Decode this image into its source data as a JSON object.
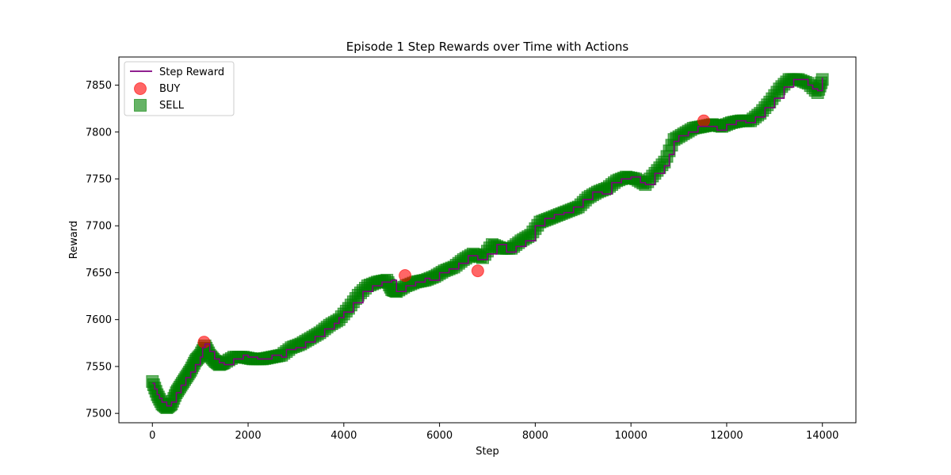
{
  "chart_data": {
    "type": "line",
    "title": "Episode 1 Step Rewards over Time with Actions",
    "xlabel": "Step",
    "ylabel": "Reward",
    "xlim": [
      -700,
      14700
    ],
    "ylim": [
      7490,
      7880
    ],
    "xticks": [
      0,
      2000,
      4000,
      6000,
      8000,
      10000,
      12000,
      14000
    ],
    "xtick_labels": [
      "0",
      "2000",
      "4000",
      "6000",
      "8000",
      "10000",
      "12000",
      "14000"
    ],
    "yticks": [
      7500,
      7550,
      7600,
      7650,
      7700,
      7750,
      7800,
      7850
    ],
    "ytick_labels": [
      "7500",
      "7550",
      "7600",
      "7650",
      "7700",
      "7750",
      "7800",
      "7850"
    ],
    "grid": false,
    "legend_position": "upper-left",
    "colors": {
      "line": "#800080",
      "buy": "#ff0000",
      "sell": "#008000"
    },
    "series": [
      {
        "name": "Step Reward",
        "kind": "line",
        "x": [
          0,
          50,
          100,
          150,
          200,
          300,
          400,
          500,
          600,
          700,
          800,
          900,
          1000,
          1050,
          1100,
          1200,
          1300,
          1400,
          1500,
          1700,
          1900,
          2000,
          2200,
          2500,
          2700,
          2800,
          3000,
          3200,
          3400,
          3600,
          3800,
          3900,
          4000,
          4200,
          4400,
          4600,
          4800,
          5000,
          5100,
          5300,
          5500,
          5700,
          5800,
          6000,
          6200,
          6400,
          6600,
          6800,
          7000,
          7200,
          7400,
          7600,
          7800,
          8000,
          8200,
          8400,
          8600,
          8800,
          9000,
          9200,
          9400,
          9600,
          9800,
          10000,
          10200,
          10300,
          10500,
          10700,
          10800,
          10900,
          11000,
          11200,
          11400,
          11600,
          11800,
          12000,
          12200,
          12400,
          12600,
          12800,
          13000,
          13200,
          13400,
          13600,
          13700,
          13800,
          13900,
          14000
        ],
        "values": [
          7532,
          7526,
          7520,
          7516,
          7512,
          7508,
          7512,
          7522,
          7530,
          7538,
          7544,
          7552,
          7560,
          7570,
          7574,
          7566,
          7558,
          7554,
          7552,
          7558,
          7562,
          7560,
          7558,
          7562,
          7560,
          7568,
          7570,
          7576,
          7582,
          7590,
          7596,
          7602,
          7608,
          7618,
          7630,
          7636,
          7640,
          7642,
          7630,
          7636,
          7640,
          7644,
          7642,
          7650,
          7654,
          7660,
          7668,
          7664,
          7670,
          7680,
          7672,
          7678,
          7684,
          7700,
          7708,
          7712,
          7714,
          7720,
          7728,
          7736,
          7734,
          7746,
          7750,
          7752,
          7746,
          7744,
          7756,
          7764,
          7776,
          7790,
          7796,
          7800,
          7806,
          7806,
          7802,
          7808,
          7812,
          7810,
          7816,
          7826,
          7836,
          7848,
          7856,
          7856,
          7850,
          7846,
          7844,
          7858
        ]
      },
      {
        "name": "BUY",
        "kind": "scatter",
        "marker": "circle",
        "x": [
          1080,
          5280,
          6800,
          11520
        ],
        "values": [
          7576,
          7647,
          7652,
          7812
        ]
      },
      {
        "name": "SELL",
        "kind": "scatter",
        "marker": "square",
        "x": [
          0,
          100,
          200,
          300,
          400,
          500,
          600,
          700,
          800,
          900,
          1000,
          1100,
          1200,
          1300,
          1400,
          1500,
          1700,
          1900,
          2100,
          2300,
          2500,
          2700,
          2900,
          3100,
          3300,
          3500,
          3700,
          3900,
          4100,
          4300,
          4500,
          4700,
          4900,
          5000,
          5100,
          5300,
          5500,
          5700,
          5900,
          6100,
          6300,
          6500,
          6700,
          6900,
          7100,
          7300,
          7500,
          7700,
          7900,
          8100,
          8300,
          8500,
          8700,
          8900,
          9100,
          9300,
          9500,
          9700,
          9900,
          10100,
          10300,
          10500,
          10700,
          10900,
          11100,
          11300,
          11500,
          11700,
          11900,
          12100,
          12300,
          12500,
          12700,
          12900,
          13100,
          13300,
          13500,
          13700,
          13900,
          14000
        ],
        "values": [
          7534,
          7520,
          7510,
          7506,
          7510,
          7522,
          7530,
          7538,
          7546,
          7556,
          7562,
          7572,
          7562,
          7556,
          7552,
          7554,
          7560,
          7560,
          7558,
          7558,
          7560,
          7562,
          7570,
          7574,
          7580,
          7586,
          7594,
          7600,
          7612,
          7626,
          7636,
          7640,
          7642,
          7632,
          7630,
          7636,
          7640,
          7642,
          7646,
          7652,
          7656,
          7664,
          7670,
          7666,
          7680,
          7676,
          7676,
          7684,
          7690,
          7704,
          7708,
          7712,
          7716,
          7720,
          7730,
          7736,
          7740,
          7748,
          7752,
          7750,
          7744,
          7756,
          7768,
          7792,
          7798,
          7804,
          7806,
          7808,
          7806,
          7810,
          7812,
          7812,
          7820,
          7832,
          7846,
          7856,
          7856,
          7852,
          7842,
          7856
        ]
      }
    ]
  }
}
